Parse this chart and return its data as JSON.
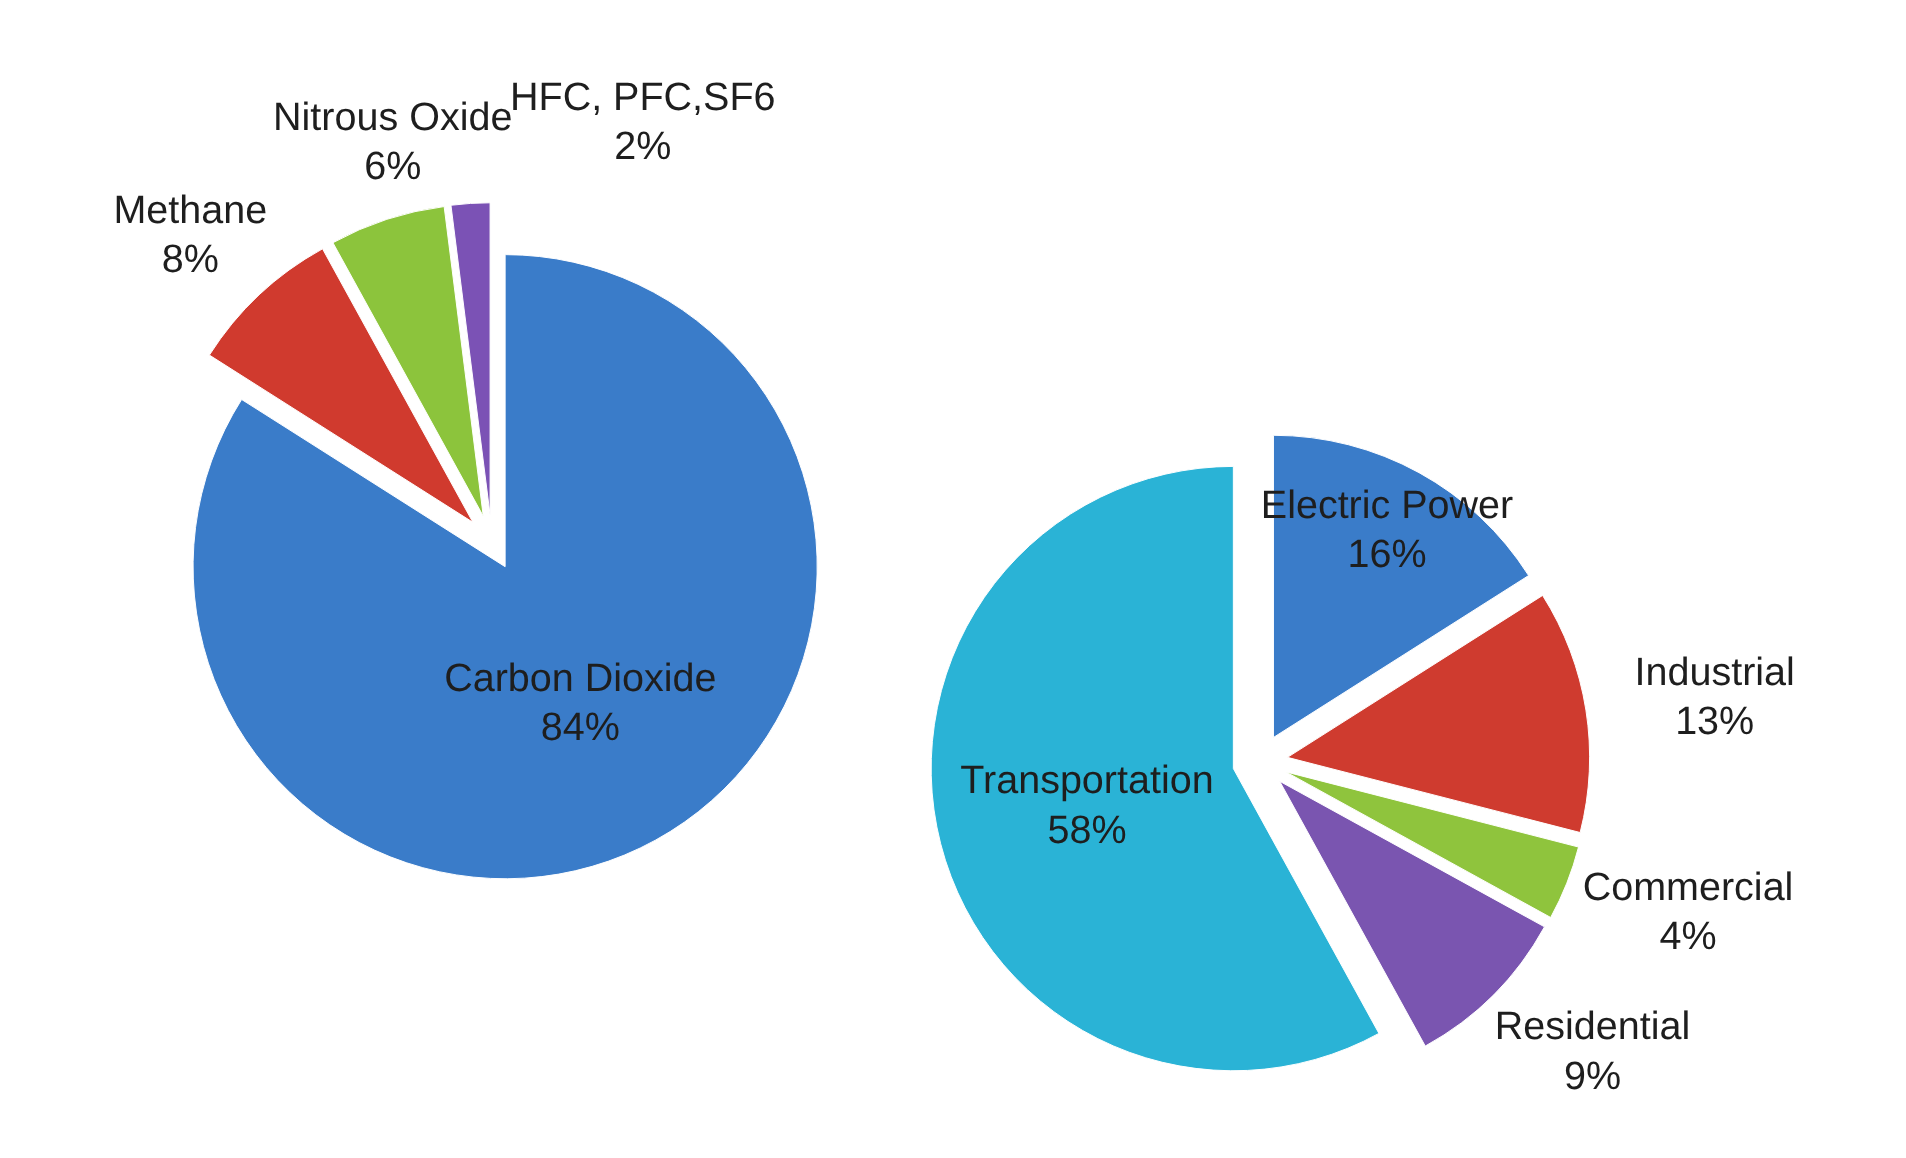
{
  "chart_data": [
    {
      "type": "pie",
      "categories": [
        "Carbon Dioxide",
        "Methane",
        "Nitrous Oxide",
        "HFC, PFC,SF6"
      ],
      "values": [
        84,
        8,
        6,
        2
      ],
      "colors": [
        "#3a7cc9",
        "#d03a2e",
        "#8cc43c",
        "#7b52b5"
      ],
      "value_labels": [
        "84%",
        "8%",
        "6%",
        "2%"
      ]
    },
    {
      "type": "pie",
      "categories": [
        "Electric Power",
        "Industrial",
        "Commercial",
        "Residential",
        "Transportation"
      ],
      "values": [
        16,
        13,
        4,
        9,
        58
      ],
      "colors": [
        "#3a7cc9",
        "#cf3b2f",
        "#8fc43d",
        "#7a55b0",
        "#2ab3d6"
      ],
      "value_labels": [
        "16%",
        "13%",
        "4%",
        "9%",
        "58%"
      ]
    }
  ]
}
